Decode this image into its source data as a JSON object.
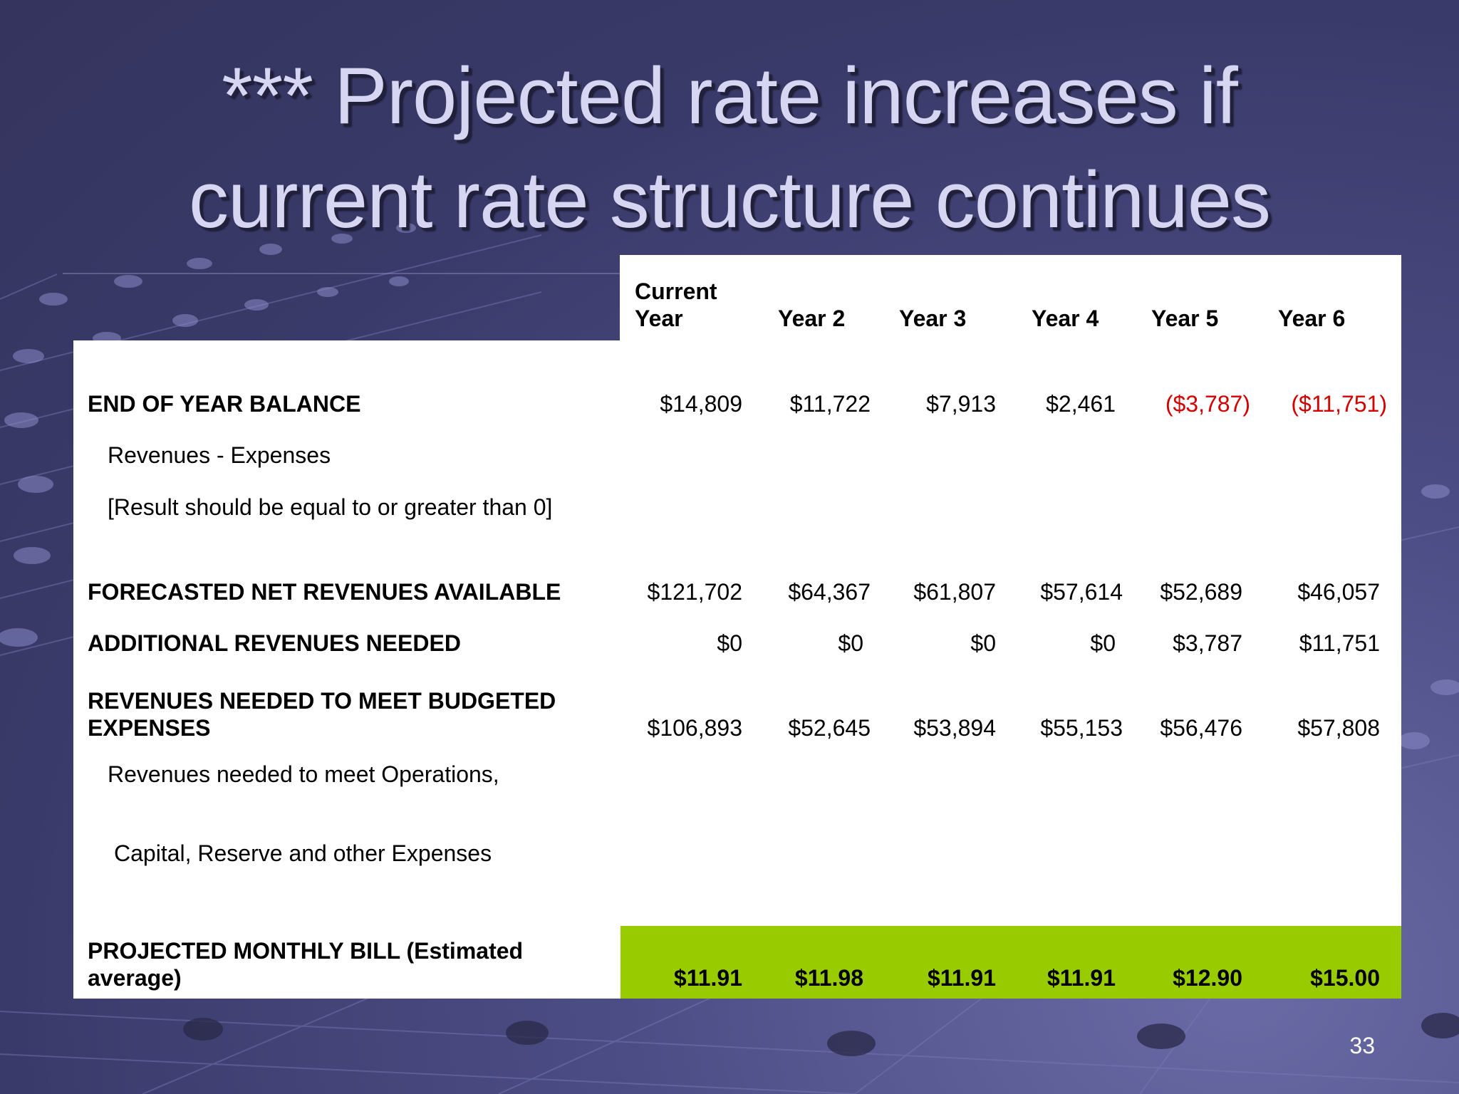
{
  "title": {
    "line1": "*** Projected rate increases if",
    "line2": "current rate structure continues"
  },
  "columns": [
    "Current Year",
    "Year 2",
    "Year 3",
    "Year 4",
    "Year 5",
    "Year 6"
  ],
  "rows": {
    "end_balance": {
      "label": "END OF YEAR BALANCE",
      "values": [
        "$14,809",
        "$11,722",
        "$7,913",
        "$2,461",
        "($3,787)",
        "($11,751)"
      ]
    },
    "rev_minus_exp": {
      "label": "Revenues - Expenses"
    },
    "result_note": {
      "label": "[Result should be equal to or greater than 0]"
    },
    "forecast_net": {
      "label": "FORECASTED NET REVENUES AVAILABLE",
      "values": [
        "$121,702",
        "$64,367",
        "$61,807",
        "$57,614",
        "$52,689",
        "$46,057"
      ]
    },
    "additional": {
      "label": "ADDITIONAL REVENUES NEEDED",
      "values": [
        "$0",
        "$0",
        "$0",
        "$0",
        "$3,787",
        "$11,751"
      ]
    },
    "needed_budget": {
      "label_line1": "REVENUES NEEDED TO MEET BUDGETED",
      "label_line2": "EXPENSES",
      "values": [
        "$106,893",
        "$52,645",
        "$53,894",
        "$55,153",
        "$56,476",
        "$57,808"
      ]
    },
    "ops_note": {
      "label": "Revenues needed to meet Operations,"
    },
    "capital_note": {
      "label": "Capital, Reserve and other Expenses"
    },
    "monthly_bill": {
      "label_line1": "PROJECTED MONTHLY BILL (Estimated",
      "label_line2": "average)",
      "values": [
        "$11.91",
        "$11.98",
        "$11.91",
        "$11.91",
        "$12.90",
        "$15.00"
      ]
    }
  },
  "colors": {
    "negative": "#d40000",
    "highlight": "#99cc00",
    "title": "#d6d6f2"
  },
  "page_number": "33"
}
